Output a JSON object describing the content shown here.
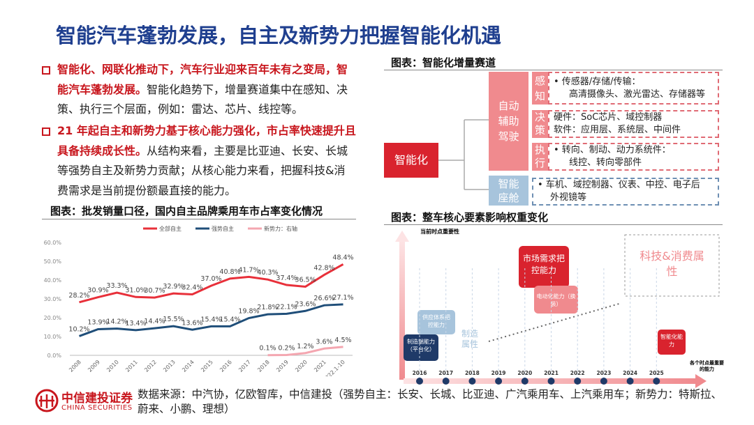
{
  "title": "智能汽车蓬勃发展，自主及新势力把握智能化机遇",
  "bullets": [
    {
      "bold": "智能化、网联化推动下，汽车行业迎来百年未有之变局，智能汽车蓬勃发展。",
      "text": "智能化趋势下，增量赛道集中在感知、决策、执行三个层面，例如：雷达、芯片、线控等。"
    },
    {
      "bold": "21 年起自主和新势力基于核心能力强化，市占率快速提升且具备持续成长性。",
      "text": "从结构来看，主要是比亚迪、长安、长城等强势自主及新势力贡献；从核心能力来看，把握科技&消费需求是当前提份额最直接的能力。"
    }
  ],
  "chart_data": {
    "type": "line",
    "title": "图表：批发销量口径，国内自主品牌乘用车市占率变化情况",
    "categories": [
      "2008",
      "2009",
      "2010",
      "2011",
      "2012",
      "2013",
      "2014",
      "2015",
      "2016",
      "2017",
      "2018",
      "2019",
      "2020",
      "2021",
      "2022.1-10"
    ],
    "series": [
      {
        "name": "全部自主",
        "color": "#e8303a",
        "values": [
          28.2,
          30.9,
          33.3,
          31.0,
          30.7,
          32.9,
          32.4,
          37.0,
          40.8,
          41.7,
          40.3,
          37.4,
          36.5,
          42.8,
          48.4
        ],
        "value_labels": [
          "28.2%",
          "30.9%",
          "33.3%",
          "31.0%",
          "30.7%",
          "32.9%",
          "32.4%",
          "37.0%",
          "40.8%",
          "41.7%",
          "40.3%",
          "37.4%",
          "36.5%",
          "42.8%",
          "48.4%"
        ]
      },
      {
        "name": "强势自主",
        "color": "#1f4e79",
        "values": [
          10.2,
          13.9,
          14.2,
          13.4,
          14.4,
          15.5,
          13.6,
          15.4,
          15.4,
          19.8,
          21.8,
          22.1,
          23.6,
          26.6,
          27.1
        ],
        "value_labels": [
          "10.2%",
          "13.9%",
          "14.2%",
          "13.4%",
          "14.4%",
          "15.5%",
          "13.6%",
          "15.4%",
          "15.4%",
          "19.8%",
          "21.8%",
          "22.1%",
          "23.6%",
          "26.6%",
          "27.1%"
        ]
      },
      {
        "name": "新势力：右轴",
        "color": "#f4a6b0",
        "values": [
          null,
          null,
          null,
          null,
          null,
          null,
          null,
          null,
          null,
          null,
          0.1,
          0.2,
          1.2,
          3.6,
          4.5
        ],
        "value_labels": [
          null,
          null,
          null,
          null,
          null,
          null,
          null,
          null,
          null,
          null,
          "0.1%",
          "0.2%",
          "1.2%",
          "3.6%",
          "4.5%"
        ]
      }
    ],
    "ylim": [
      0,
      60
    ],
    "yticks": [
      {
        "value": 0,
        "label": "0.0%"
      },
      {
        "value": 10,
        "label": "10.0%"
      },
      {
        "value": 20,
        "label": "20.0%"
      },
      {
        "value": 30,
        "label": "30.0%"
      },
      {
        "value": 40,
        "label": "40.0%"
      },
      {
        "value": 50,
        "label": "50.0%"
      },
      {
        "value": 60,
        "label": "60.0%"
      }
    ],
    "legend": "top"
  },
  "diagram": {
    "caption": "图表：智能化增量赛道",
    "root": "智能化",
    "groups": [
      {
        "label": "自动辅助驾驶",
        "items": [
          {
            "label": "感知",
            "lines": [
              "•   传感器/存储/传输：",
              "高清摄像头、激光雷达、存储器等"
            ]
          },
          {
            "label": "决策",
            "lines": [
              "硬件：SoC芯片、域控制器",
              "软件：应用层、系统层、中间件"
            ]
          },
          {
            "label": "执行",
            "lines": [
              "•  转向、制动、动力系统件：",
              "线控、转向零部件"
            ]
          }
        ]
      },
      {
        "label": "智能座舱",
        "items": [
          {
            "lines": [
              "•  车机、域控制器、仪表、中控、电子后",
              "外视镜等"
            ]
          }
        ]
      }
    ]
  },
  "timeline": {
    "caption": "图表：整车核心要素影响权重变化",
    "years": [
      "2016",
      "2017",
      "2018",
      "2019",
      "2020",
      "2021",
      "2022",
      "2023",
      "2024",
      "2025"
    ],
    "y_label": "当前时点重要性",
    "platform": "制造端能力（平台化）",
    "supply": "供应体系把控能力",
    "manufacture": "制造属性",
    "market": "市场需求把控能力",
    "electric": "电动化能力（换装）",
    "tech": "科技&消费属性",
    "smart": "智能化能力",
    "x_label": "各个时点最重要的能力"
  },
  "footer": {
    "source": "数据来源：中汽协，亿欧智库，中信建投（强势自主：长安、长城、比亚迪、广汽乘用车、上汽乘用车；新势力：特斯拉、蔚来、小鹏、理想）",
    "logo_cn": "中信建投证券",
    "logo_en": "CHINA SECURITIES"
  }
}
